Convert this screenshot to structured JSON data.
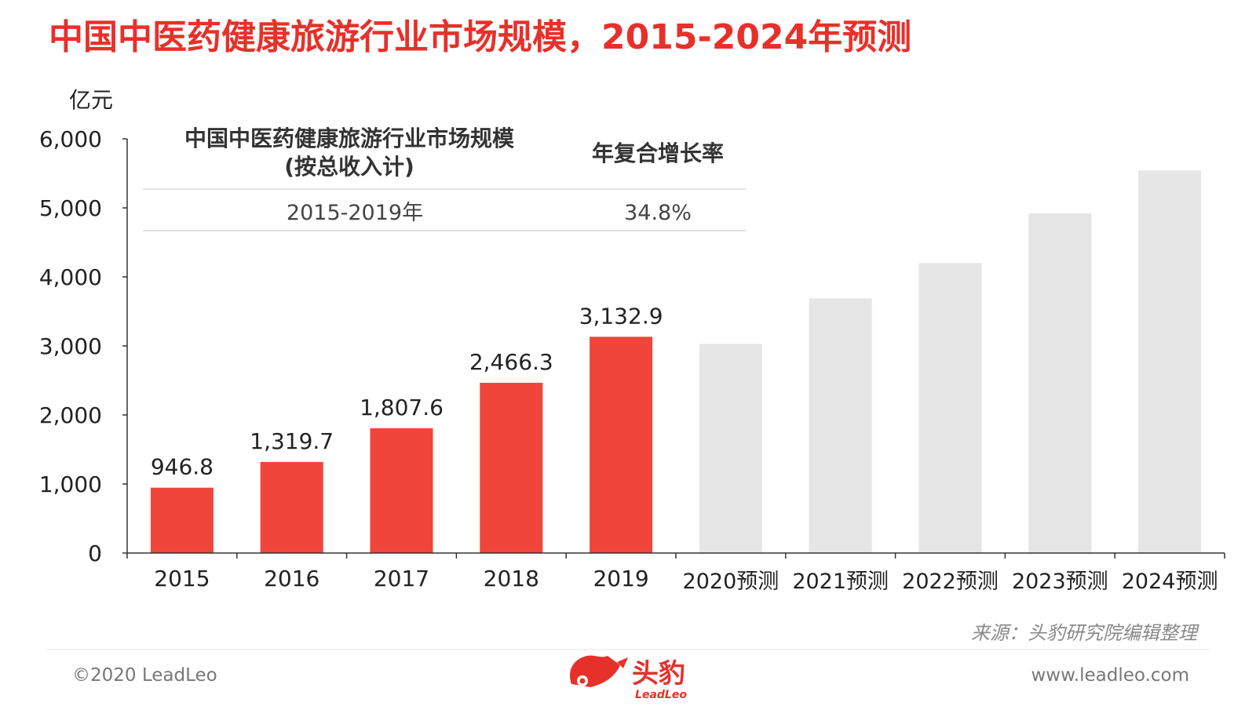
{
  "page": {
    "title": "中国中医药健康旅游行业市场规模，2015-2024年预测",
    "source_note": "来源：头豹研究院编辑整理",
    "copyright": "©2020 LeadLeo",
    "website": "www.leadleo.com",
    "logo_text": "头豹",
    "logo_subtext": "LeadLeo"
  },
  "cagr_table": {
    "col1_header_line1": "中国中医药健康旅游行业市场规模",
    "col1_header_line2": "(按总收入计)",
    "col2_header": "年复合增长率",
    "row_period": "2015-2019年",
    "row_rate": "34.8%"
  },
  "chart_data": {
    "type": "bar",
    "ylabel": "亿元",
    "ylim": [
      0,
      6000
    ],
    "yticks": [
      0,
      1000,
      2000,
      3000,
      4000,
      5000,
      6000
    ],
    "ytick_labels": [
      "0",
      "1,000",
      "2,000",
      "3,000",
      "4,000",
      "5,000",
      "6,000"
    ],
    "categories": [
      "2015",
      "2016",
      "2017",
      "2018",
      "2019",
      "2020预测",
      "2021预测",
      "2022预测",
      "2023预测",
      "2024预测"
    ],
    "values": [
      946.8,
      1319.7,
      1807.6,
      2466.3,
      3132.9,
      3030,
      3690,
      4200,
      4920,
      5540
    ],
    "labels": [
      "946.8",
      "1,319.7",
      "1,807.6",
      "2,466.3",
      "3,132.9",
      "",
      "",
      "",
      "",
      ""
    ],
    "forecast": [
      false,
      false,
      false,
      false,
      false,
      true,
      true,
      true,
      true,
      true
    ],
    "colors": {
      "actual": "#f0453a",
      "forecast": "#e6e6e6",
      "title": "#e8302a",
      "axis": "#333333"
    }
  }
}
